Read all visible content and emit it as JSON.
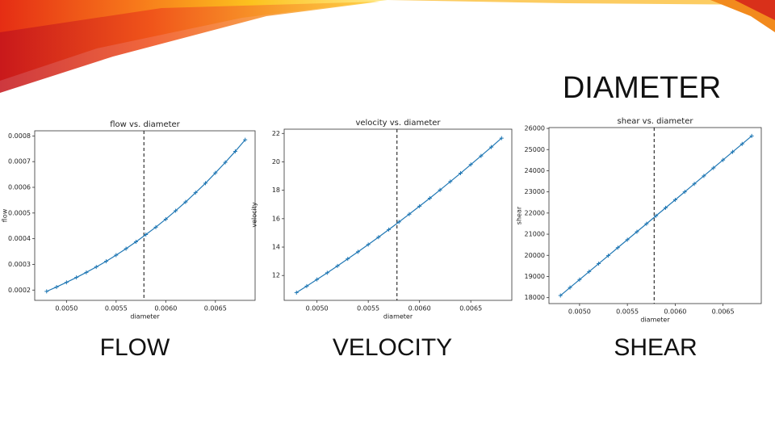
{
  "slide": {
    "title": "DIAMETER",
    "captions": [
      "FLOW",
      "VELOCITY",
      "SHEAR"
    ]
  },
  "chart_data": [
    {
      "type": "line",
      "title": "flow vs. diameter",
      "x_label": "diameter",
      "y_label": "flow",
      "x": [
        0.0048,
        0.0049,
        0.005,
        0.0051,
        0.0052,
        0.0053,
        0.0054,
        0.0055,
        0.0056,
        0.0057,
        0.0058,
        0.0059,
        0.006,
        0.0061,
        0.0062,
        0.0063,
        0.0064,
        0.0065,
        0.0066,
        0.0067,
        0.0068
      ],
      "series": [
        {
          "name": "flow",
          "color": "#1f77b4",
          "values": [
            0.000195,
            0.000212,
            0.00023,
            0.000249,
            0.000269,
            0.00029,
            0.000312,
            0.000336,
            0.000361,
            0.000388,
            0.000416,
            0.000445,
            0.000476,
            0.000509,
            0.000543,
            0.000579,
            0.000616,
            0.000656,
            0.000697,
            0.00074,
            0.000785
          ]
        }
      ],
      "vline": 0.00578,
      "xlim": [
        0.00468,
        0.0069
      ],
      "xticks": [
        {
          "value": 0.005,
          "label": "0.0050"
        },
        0.0055,
        {
          "value": 0.006,
          "label": "0.0060"
        },
        0.0065
      ],
      "ylim": [
        0.00016,
        0.00082
      ],
      "yticks": [
        0.0002,
        0.0003,
        0.0004,
        0.0005,
        0.0006,
        0.0007,
        0.0008
      ]
    },
    {
      "type": "line",
      "title": "velocity vs. diameter",
      "x_label": "diameter",
      "y_label": "velocity",
      "x": [
        0.0048,
        0.0049,
        0.005,
        0.0051,
        0.0052,
        0.0053,
        0.0054,
        0.0055,
        0.0056,
        0.0057,
        0.0058,
        0.0059,
        0.006,
        0.0061,
        0.0062,
        0.0063,
        0.0064,
        0.0065,
        0.0066,
        0.0067,
        0.0068
      ],
      "series": [
        {
          "name": "velocity",
          "color": "#1f77b4",
          "values": [
            10.8,
            11.25,
            11.72,
            12.19,
            12.67,
            13.17,
            13.67,
            14.18,
            14.7,
            15.23,
            15.77,
            16.32,
            16.88,
            17.44,
            18.02,
            18.61,
            19.2,
            19.81,
            20.42,
            21.04,
            21.67
          ]
        }
      ],
      "vline": 0.00578,
      "xlim": [
        0.00468,
        0.0069
      ],
      "xticks": [
        {
          "value": 0.005,
          "label": "0.0050"
        },
        0.0055,
        {
          "value": 0.006,
          "label": "0.0060"
        },
        0.0065
      ],
      "ylim": [
        10.25,
        22.3
      ],
      "yticks": [
        12,
        14,
        16,
        18,
        20,
        22
      ]
    },
    {
      "type": "line",
      "title": "shear vs. diameter",
      "x_label": "diameter",
      "y_label": "shear",
      "x": [
        0.0048,
        0.0049,
        0.005,
        0.0051,
        0.0052,
        0.0053,
        0.0054,
        0.0055,
        0.0056,
        0.0057,
        0.0058,
        0.0059,
        0.006,
        0.0061,
        0.0062,
        0.0063,
        0.0064,
        0.0065,
        0.0066,
        0.0067,
        0.0068
      ],
      "series": [
        {
          "name": "shear",
          "color": "#1f77b4",
          "values": [
            18100,
            18477,
            18854,
            19231,
            19608,
            19985,
            20363,
            20740,
            21117,
            21494,
            21871,
            22248,
            22625,
            23002,
            23379,
            23756,
            24133,
            24510,
            24888,
            25265,
            25642
          ]
        }
      ],
      "vline": 0.00578,
      "xlim": [
        0.00468,
        0.0069
      ],
      "xticks": [
        {
          "value": 0.005,
          "label": "0.0050"
        },
        0.0055,
        {
          "value": 0.006,
          "label": "0.0060"
        },
        0.0065
      ],
      "ylim": [
        17720,
        26040
      ],
      "yticks": [
        18000,
        19000,
        20000,
        21000,
        22000,
        23000,
        24000,
        25000,
        26000
      ]
    }
  ]
}
